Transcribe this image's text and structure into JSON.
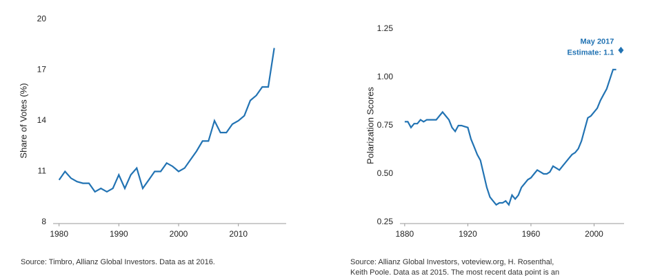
{
  "chart_data": [
    {
      "type": "line",
      "ylabel": "Share of Votes (%)",
      "x": [
        1980,
        1981,
        1982,
        1983,
        1984,
        1985,
        1986,
        1987,
        1988,
        1989,
        1990,
        1991,
        1992,
        1993,
        1994,
        1995,
        1996,
        1997,
        1998,
        1999,
        2000,
        2001,
        2002,
        2003,
        2004,
        2005,
        2006,
        2007,
        2008,
        2009,
        2010,
        2011,
        2012,
        2013,
        2014,
        2015,
        2016
      ],
      "series": [
        {
          "color": "#2273b3",
          "values": [
            10.5,
            11.0,
            10.6,
            10.4,
            10.3,
            10.3,
            9.8,
            10.0,
            9.8,
            10.0,
            10.8,
            10.0,
            10.8,
            11.2,
            10.0,
            10.5,
            11.0,
            11.0,
            11.5,
            11.3,
            11.0,
            11.2,
            11.7,
            12.2,
            12.8,
            12.8,
            14.0,
            13.3,
            13.3,
            13.8,
            14.0,
            14.3,
            15.2,
            15.5,
            16.0,
            16.0,
            18.3
          ]
        }
      ],
      "xlim": [
        1979,
        2018
      ],
      "xticks": [
        1980,
        1990,
        2000,
        2010
      ],
      "ylim": [
        8,
        20
      ],
      "yticks": [
        8,
        11,
        14,
        17,
        20
      ],
      "source": [
        "Source: Timbro, Allianz Global Investors. Data as at 2016."
      ]
    },
    {
      "type": "line",
      "ylabel": "Polarization Scores",
      "x": [
        1880,
        1882,
        1884,
        1886,
        1888,
        1890,
        1892,
        1894,
        1896,
        1898,
        1900,
        1902,
        1904,
        1906,
        1908,
        1910,
        1912,
        1914,
        1916,
        1918,
        1920,
        1922,
        1924,
        1926,
        1928,
        1930,
        1932,
        1934,
        1936,
        1938,
        1940,
        1942,
        1944,
        1946,
        1948,
        1950,
        1952,
        1954,
        1956,
        1958,
        1960,
        1962,
        1964,
        1966,
        1968,
        1970,
        1972,
        1974,
        1976,
        1978,
        1980,
        1982,
        1984,
        1986,
        1988,
        1990,
        1992,
        1994,
        1996,
        1998,
        2000,
        2002,
        2004,
        2006,
        2008,
        2010,
        2012,
        2014
      ],
      "series": [
        {
          "color": "#2273b3",
          "values": [
            0.77,
            0.77,
            0.74,
            0.76,
            0.76,
            0.78,
            0.77,
            0.78,
            0.78,
            0.78,
            0.78,
            0.8,
            0.82,
            0.8,
            0.78,
            0.74,
            0.72,
            0.75,
            0.75,
            0.745,
            0.74,
            0.68,
            0.64,
            0.6,
            0.57,
            0.5,
            0.43,
            0.38,
            0.36,
            0.34,
            0.35,
            0.35,
            0.36,
            0.34,
            0.39,
            0.37,
            0.39,
            0.43,
            0.45,
            0.47,
            0.48,
            0.5,
            0.52,
            0.51,
            0.5,
            0.5,
            0.51,
            0.54,
            0.53,
            0.52,
            0.54,
            0.56,
            0.58,
            0.6,
            0.61,
            0.63,
            0.67,
            0.73,
            0.79,
            0.8,
            0.82,
            0.84,
            0.88,
            0.91,
            0.94,
            0.99,
            1.04,
            1.04
          ]
        }
      ],
      "xlim": [
        1877,
        2019
      ],
      "xticks": [
        1880,
        1920,
        1960,
        2000
      ],
      "ylim": [
        0.25,
        1.25
      ],
      "yticks": [
        0.25,
        {
          "value": 0.5,
          "label": "0.50"
        },
        0.75,
        {
          "value": 1,
          "label": "1.00"
        },
        1.25
      ],
      "annotation": {
        "text": [
          "May 2017",
          "Estimate: 1.1"
        ],
        "x": 2017,
        "y": 1.14
      },
      "source": [
        "Source: Allianz Global Investors, voteview.org, H. Rosenthal,",
        "Keith Poole. Data as at 2015. The most recent data point is an"
      ]
    }
  ]
}
